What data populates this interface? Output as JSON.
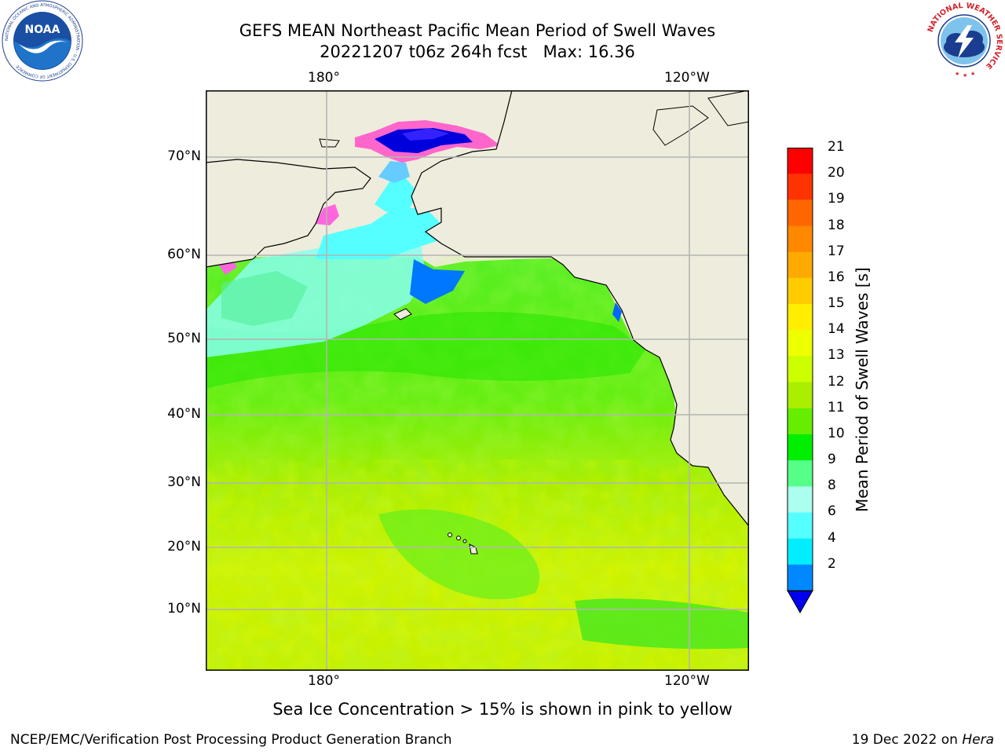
{
  "header": {
    "title_line1": "GEFS MEAN Northeast Pacific Mean Period of Swell Waves",
    "title_line2": "20221207 t06z 264h fcst   Max: 16.36"
  },
  "logos": {
    "noaa_text": "NOAA",
    "noaa_ring_text": "NATIONAL OCEANIC AND ATMOSPHERIC ADMINISTRATION · U.S. DEPARTMENT OF COMMERCE",
    "nws_ring_text": "NATIONAL WEATHER SERVICE"
  },
  "map": {
    "lon_labels_top": [
      "180°",
      "120°W"
    ],
    "lon_labels_bottom": [
      "180°",
      "120°W"
    ],
    "lat_labels": [
      "70°N",
      "60°N",
      "50°N",
      "40°N",
      "30°N",
      "20°N",
      "10°N"
    ],
    "land_color": "#eeecdc",
    "grid_color": "#b4b4b4"
  },
  "colorbar": {
    "label": "Mean Period of Swell Waves [s]",
    "ticks": [
      "21",
      "20",
      "19",
      "18",
      "17",
      "16",
      "15",
      "14",
      "13",
      "12",
      "11",
      "10",
      "9",
      "8",
      "6",
      "4",
      "2"
    ],
    "colors_top_to_bottom": [
      "#ff0000",
      "#ff3300",
      "#ff6600",
      "#ff8800",
      "#ffaa00",
      "#ffcc00",
      "#ffee00",
      "#eeff00",
      "#ccff00",
      "#aaee00",
      "#66ee00",
      "#00ee00",
      "#55ff88",
      "#aaffee",
      "#55ffff",
      "#00eeff",
      "#0088ff"
    ],
    "extend_color": "#0000ee"
  },
  "caption": "Sea Ice Concentration > 15% is shown in pink to yellow",
  "footer": {
    "left": "NCEP/EMC/Verification Post Processing Product Generation Branch",
    "right_prefix": "19 Dec 2022 on ",
    "right_host": "Hera"
  }
}
